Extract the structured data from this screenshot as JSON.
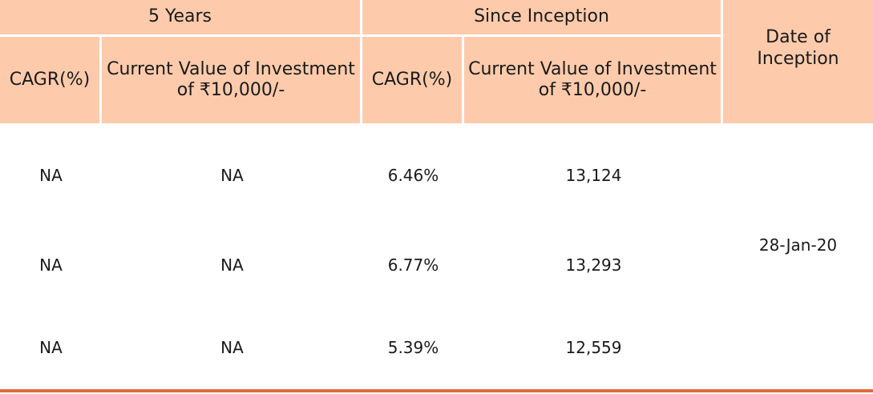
{
  "table": {
    "group_headers": {
      "five_years": "5 Years",
      "since_inception": "Since Inception",
      "date_of_inception": "Date of Inception"
    },
    "sub_headers": {
      "five_years_cagr": "CAGR(%)",
      "five_years_value": "Current Value of Investment of ₹10,000/-",
      "since_cagr": "CAGR(%)",
      "since_value": "Current Value of Investment of ₹10,000/-"
    },
    "rows": [
      {
        "five_years_cagr": "NA",
        "five_years_value": "NA",
        "since_cagr": "6.46%",
        "since_value": "13,124"
      },
      {
        "five_years_cagr": "NA",
        "five_years_value": "NA",
        "since_cagr": "6.77%",
        "since_value": "13,293"
      },
      {
        "five_years_cagr": "NA",
        "five_years_value": "NA",
        "since_cagr": "5.39%",
        "since_value": "12,559"
      }
    ],
    "date_of_inception_value": "28-Jan-20"
  },
  "colors": {
    "header_fill": "#fdcbac",
    "bottom_rule": "#e06a3c"
  }
}
